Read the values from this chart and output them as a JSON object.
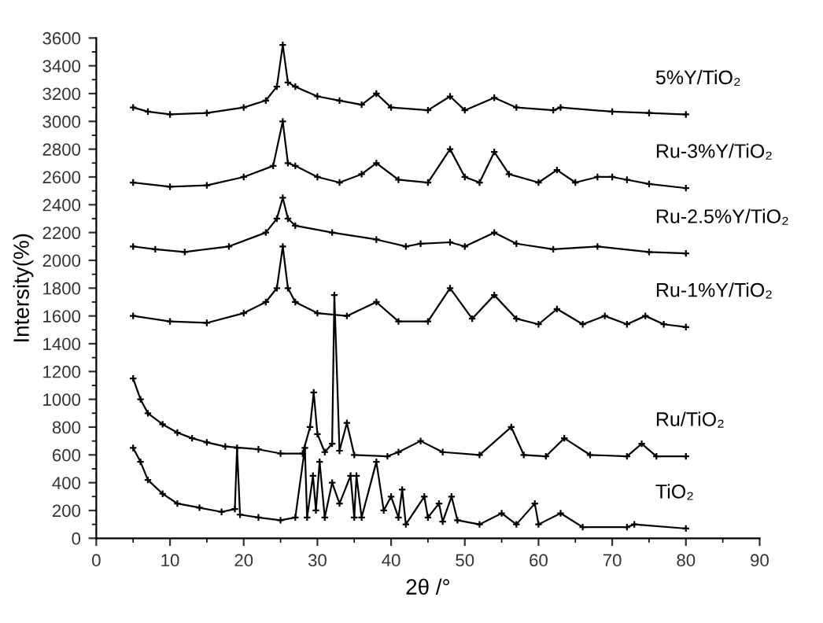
{
  "chart_data": {
    "type": "line",
    "xlabel": "2θ /°",
    "ylabel": "Intersity(%)",
    "xlim": [
      0,
      90
    ],
    "xticks": [
      0,
      10,
      20,
      30,
      40,
      50,
      60,
      70,
      80,
      90
    ],
    "ylim": [
      0,
      3600
    ],
    "yticks": [
      0,
      200,
      400,
      600,
      800,
      1000,
      1200,
      1400,
      1600,
      1800,
      2000,
      2200,
      2400,
      2600,
      2800,
      3000,
      3200,
      3400,
      3600
    ],
    "grid": false,
    "legend": false,
    "marker": "cross",
    "line_style": "solid",
    "series": [
      {
        "name": "5%Y/TiO₂",
        "color": "#000000",
        "x": [
          5,
          7,
          10,
          15,
          20,
          23,
          24.5,
          25.3,
          26,
          27,
          30,
          33,
          36,
          38,
          40,
          45,
          48,
          50,
          54,
          57,
          62,
          63,
          70,
          75,
          80
        ],
        "values": [
          3100,
          3070,
          3050,
          3060,
          3100,
          3150,
          3250,
          3550,
          3280,
          3250,
          3180,
          3150,
          3120,
          3200,
          3100,
          3080,
          3180,
          3080,
          3170,
          3100,
          3080,
          3100,
          3070,
          3060,
          3050
        ]
      },
      {
        "name": "Ru-3%Y/TiO₂",
        "color": "#000000",
        "x": [
          5,
          10,
          15,
          20,
          24,
          25.3,
          26,
          27,
          30,
          33,
          36,
          38,
          41,
          45,
          48,
          50,
          52,
          54,
          56,
          60,
          62.5,
          65,
          68,
          70,
          72,
          75,
          80
        ],
        "values": [
          2560,
          2530,
          2540,
          2600,
          2680,
          3000,
          2700,
          2680,
          2600,
          2560,
          2620,
          2700,
          2580,
          2560,
          2800,
          2600,
          2560,
          2780,
          2620,
          2560,
          2650,
          2560,
          2600,
          2600,
          2580,
          2550,
          2520
        ]
      },
      {
        "name": "Ru-2.5%Y/TiO₂",
        "color": "#000000",
        "x": [
          5,
          8,
          12,
          18,
          23,
          24.5,
          25.3,
          26,
          27,
          32,
          38,
          42,
          44,
          48,
          50,
          54,
          57,
          62,
          68,
          75,
          80
        ],
        "values": [
          2100,
          2080,
          2060,
          2100,
          2200,
          2300,
          2450,
          2300,
          2250,
          2200,
          2150,
          2100,
          2120,
          2130,
          2100,
          2200,
          2120,
          2080,
          2100,
          2060,
          2050
        ]
      },
      {
        "name": "Ru-1%Y/TiO₂",
        "color": "#000000",
        "x": [
          5,
          10,
          15,
          20,
          23,
          24.5,
          25.3,
          26,
          27,
          30,
          34,
          38,
          41,
          45,
          48,
          51,
          54,
          57,
          60,
          62.5,
          66,
          69,
          72,
          74.5,
          77,
          80
        ],
        "values": [
          1600,
          1560,
          1550,
          1620,
          1700,
          1800,
          2100,
          1800,
          1700,
          1620,
          1600,
          1700,
          1560,
          1560,
          1800,
          1580,
          1750,
          1580,
          1540,
          1650,
          1540,
          1600,
          1540,
          1600,
          1540,
          1520
        ]
      },
      {
        "name": "Ru/TiO₂",
        "color": "#000000",
        "x": [
          5,
          6,
          7,
          9,
          11,
          13,
          15,
          17.5,
          22,
          25,
          28,
          29,
          29.5,
          30,
          31,
          32,
          32.3,
          33,
          34,
          35,
          39.5,
          41,
          44,
          47,
          52,
          56.3,
          58,
          61,
          63.5,
          67,
          72,
          74,
          76,
          80
        ],
        "values": [
          1150,
          1000,
          900,
          820,
          760,
          720,
          690,
          660,
          640,
          610,
          610,
          800,
          1050,
          750,
          620,
          680,
          1750,
          630,
          830,
          600,
          590,
          620,
          700,
          620,
          600,
          800,
          600,
          590,
          720,
          600,
          590,
          680,
          590,
          590
        ]
      },
      {
        "name": "TiO₂",
        "color": "#000000",
        "x": [
          5,
          6,
          7,
          9,
          11,
          14,
          17,
          18.8,
          19.1,
          19.5,
          22,
          25,
          27,
          28.3,
          28.6,
          29.4,
          29.8,
          30.3,
          31,
          32,
          33,
          34.5,
          35,
          35.3,
          36,
          38,
          39,
          40,
          41,
          41.5,
          42,
          44.5,
          45,
          46.5,
          47,
          48.2,
          49,
          52,
          55,
          57,
          59.5,
          60,
          63,
          66,
          72,
          73,
          80
        ],
        "values": [
          650,
          550,
          420,
          320,
          250,
          220,
          190,
          210,
          650,
          170,
          150,
          130,
          150,
          650,
          150,
          450,
          200,
          550,
          150,
          400,
          250,
          450,
          150,
          450,
          150,
          550,
          200,
          300,
          150,
          350,
          100,
          300,
          150,
          250,
          120,
          300,
          130,
          100,
          180,
          100,
          250,
          100,
          180,
          80,
          80,
          100,
          70
        ]
      }
    ]
  }
}
